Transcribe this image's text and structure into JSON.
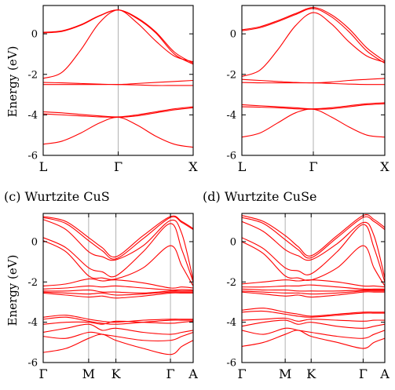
{
  "figure": {
    "panel_titles": [
      "",
      "",
      "(c) Wurtzite CuS",
      "(d) Wurtzite CuSe"
    ],
    "ylabel": "Energy (eV)"
  },
  "colors": {
    "band": "#ff0000",
    "hsym": "#aaaaaa",
    "axes": "#000000"
  },
  "chart_data": [
    {
      "type": "line",
      "title": "",
      "ylabel": "Energy (eV)",
      "ylim": [
        -6,
        1.4
      ],
      "yticks": [
        0,
        -2,
        -4,
        -6
      ],
      "kpoints": [
        "L",
        "Γ",
        "X"
      ],
      "kpos": [
        0,
        1,
        2
      ],
      "internal_lines": [
        1
      ],
      "x": [
        0,
        0.25,
        0.5,
        0.75,
        1,
        1.25,
        1.5,
        1.75,
        2
      ],
      "series": [
        {
          "values": [
            0.08,
            0.15,
            0.45,
            0.9,
            1.18,
            0.8,
            0.1,
            -0.9,
            -1.45
          ]
        },
        {
          "values": [
            0.05,
            0.12,
            0.42,
            0.88,
            1.18,
            0.76,
            0.05,
            -1.0,
            -1.5
          ]
        },
        {
          "values": [
            -2.2,
            -1.9,
            -0.8,
            0.55,
            1.18,
            0.55,
            -0.35,
            -1.1,
            -1.38
          ]
        },
        {
          "values": [
            -2.4,
            -2.42,
            -2.45,
            -2.48,
            -2.5,
            -2.45,
            -2.4,
            -2.35,
            -2.3
          ]
        },
        {
          "values": [
            -2.5,
            -2.5,
            -2.5,
            -2.5,
            -2.5,
            -2.52,
            -2.55,
            -2.55,
            -2.55
          ]
        },
        {
          "values": [
            -3.85,
            -3.9,
            -3.98,
            -4.05,
            -4.1,
            -4.0,
            -3.85,
            -3.7,
            -3.6
          ]
        },
        {
          "values": [
            -3.95,
            -4.0,
            -4.05,
            -4.1,
            -4.12,
            -4.05,
            -3.9,
            -3.75,
            -3.65
          ]
        },
        {
          "values": [
            -5.45,
            -5.3,
            -4.9,
            -4.4,
            -4.12,
            -4.5,
            -5.05,
            -5.45,
            -5.6
          ]
        }
      ]
    },
    {
      "type": "line",
      "title": "",
      "ylabel": "",
      "ylim": [
        -6,
        1.4
      ],
      "yticks": [
        0,
        -2,
        -4,
        -6
      ],
      "kpoints": [
        "L",
        "Γ",
        "X"
      ],
      "kpos": [
        0,
        1,
        2
      ],
      "internal_lines": [
        1
      ],
      "x": [
        0,
        0.25,
        0.5,
        0.75,
        1,
        1.25,
        1.5,
        1.75,
        2
      ],
      "series": [
        {
          "values": [
            0.2,
            0.35,
            0.65,
            1.0,
            1.3,
            0.95,
            0.25,
            -0.7,
            -1.35
          ]
        },
        {
          "values": [
            0.15,
            0.3,
            0.6,
            0.95,
            1.25,
            0.85,
            0.1,
            -0.85,
            -1.45
          ]
        },
        {
          "values": [
            -2.1,
            -1.8,
            -0.8,
            0.4,
            1.05,
            0.5,
            -0.4,
            -1.1,
            -1.4
          ]
        },
        {
          "values": [
            -2.25,
            -2.3,
            -2.35,
            -2.4,
            -2.42,
            -2.38,
            -2.3,
            -2.25,
            -2.2
          ]
        },
        {
          "values": [
            -2.4,
            -2.42,
            -2.42,
            -2.42,
            -2.42,
            -2.45,
            -2.48,
            -2.5,
            -2.5
          ]
        },
        {
          "values": [
            -3.5,
            -3.55,
            -3.6,
            -3.65,
            -3.7,
            -3.65,
            -3.55,
            -3.45,
            -3.4
          ]
        },
        {
          "values": [
            -3.6,
            -3.62,
            -3.65,
            -3.7,
            -3.72,
            -3.7,
            -3.6,
            -3.5,
            -3.45
          ]
        },
        {
          "values": [
            -5.1,
            -4.9,
            -4.4,
            -3.9,
            -3.72,
            -4.1,
            -4.6,
            -5.0,
            -5.1
          ]
        }
      ]
    },
    {
      "type": "line",
      "title": "(c) Wurtzite CuS",
      "ylabel": "Energy (eV)",
      "ylim": [
        -6,
        1.4
      ],
      "yticks": [
        0,
        -2,
        -4,
        -6
      ],
      "kpoints": [
        "Γ",
        "M",
        "K",
        "Γ",
        "A"
      ],
      "kpos": [
        0,
        1,
        1.6,
        2.8,
        3.3
      ],
      "internal_lines": [
        1,
        1.6,
        2.8
      ],
      "x": [
        0,
        0.5,
        1,
        1.3,
        1.6,
        2.2,
        2.8,
        3.05,
        3.3
      ],
      "series": [
        {
          "values": [
            1.25,
            1.0,
            0.2,
            -0.3,
            -0.75,
            0.3,
            1.25,
            1.0,
            0.65
          ]
        },
        {
          "values": [
            1.2,
            0.9,
            0.05,
            -0.45,
            -0.85,
            0.15,
            1.2,
            0.95,
            0.6
          ]
        },
        {
          "values": [
            1.1,
            0.6,
            -0.5,
            -0.75,
            -0.9,
            -0.2,
            1.05,
            0.4,
            -1.9
          ]
        },
        {
          "values": [
            0.2,
            -0.3,
            -1.3,
            -1.5,
            -1.7,
            -0.5,
            0.9,
            -0.4,
            -2.0
          ]
        },
        {
          "values": [
            0.05,
            -0.5,
            -1.7,
            -1.8,
            -1.85,
            -1.3,
            -0.2,
            -1.2,
            -2.2
          ]
        },
        {
          "values": [
            -2.2,
            -2.1,
            -1.85,
            -1.95,
            -1.9,
            -2.05,
            -2.3,
            -2.25,
            -2.3
          ]
        },
        {
          "values": [
            -2.35,
            -2.3,
            -2.2,
            -2.25,
            -2.2,
            -2.3,
            -2.4,
            -2.38,
            -2.4
          ]
        },
        {
          "values": [
            -2.45,
            -2.45,
            -2.4,
            -2.5,
            -2.5,
            -2.55,
            -2.45,
            -2.45,
            -2.45
          ]
        },
        {
          "values": [
            -2.5,
            -2.55,
            -2.6,
            -2.55,
            -2.65,
            -2.6,
            -2.5,
            -2.5,
            -2.5
          ]
        },
        {
          "values": [
            -2.55,
            -2.65,
            -2.75,
            -2.7,
            -2.8,
            -2.7,
            -2.55,
            -2.55,
            -2.55
          ]
        },
        {
          "values": [
            -3.75,
            -3.65,
            -3.85,
            -3.95,
            -4.0,
            -3.9,
            -3.85,
            -3.85,
            -3.85
          ]
        },
        {
          "values": [
            -3.85,
            -3.75,
            -3.95,
            -4.05,
            -4.1,
            -4.0,
            -3.9,
            -3.9,
            -3.9
          ]
        },
        {
          "values": [
            -4.1,
            -4.0,
            -4.0,
            -4.1,
            -3.95,
            -4.0,
            -4.05,
            -4.0,
            -3.95
          ]
        },
        {
          "values": [
            -4.5,
            -4.3,
            -4.1,
            -4.4,
            -4.3,
            -4.5,
            -4.6,
            -4.5,
            -4.4
          ]
        },
        {
          "values": [
            -4.7,
            -4.8,
            -4.5,
            -4.6,
            -4.7,
            -4.9,
            -4.9,
            -4.7,
            -4.5
          ]
        },
        {
          "values": [
            -5.5,
            -5.3,
            -4.8,
            -4.6,
            -4.9,
            -5.3,
            -5.6,
            -5.2,
            -4.9
          ]
        }
      ]
    },
    {
      "type": "line",
      "title": "(d) Wurtzite CuSe",
      "ylabel": "",
      "ylim": [
        -6,
        1.4
      ],
      "yticks": [
        0,
        -2,
        -4,
        -6
      ],
      "kpoints": [
        "Γ",
        "M",
        "K",
        "Γ",
        "A"
      ],
      "kpos": [
        0,
        1,
        1.6,
        2.8,
        3.3
      ],
      "internal_lines": [
        1,
        1.6,
        2.8
      ],
      "x": [
        0,
        0.5,
        1,
        1.3,
        1.6,
        2.2,
        2.8,
        3.05,
        3.3
      ],
      "series": [
        {
          "values": [
            1.3,
            1.0,
            0.3,
            -0.25,
            -0.7,
            0.3,
            1.3,
            1.1,
            0.7
          ]
        },
        {
          "values": [
            1.2,
            0.9,
            0.1,
            -0.4,
            -0.8,
            0.2,
            1.2,
            1.0,
            0.6
          ]
        },
        {
          "values": [
            1.0,
            0.5,
            -0.4,
            -0.7,
            -0.9,
            -0.1,
            0.95,
            0.3,
            -1.8
          ]
        },
        {
          "values": [
            0.2,
            -0.35,
            -1.3,
            -1.45,
            -1.6,
            -0.5,
            0.85,
            -0.3,
            -2.0
          ]
        },
        {
          "values": [
            0.0,
            -0.6,
            -1.7,
            -1.8,
            -1.9,
            -1.3,
            -0.2,
            -1.3,
            -2.2
          ]
        },
        {
          "values": [
            -2.1,
            -2.0,
            -1.9,
            -1.95,
            -1.9,
            -2.0,
            -2.2,
            -2.2,
            -2.25
          ]
        },
        {
          "values": [
            -2.25,
            -2.25,
            -2.2,
            -2.2,
            -2.15,
            -2.25,
            -2.35,
            -2.35,
            -2.35
          ]
        },
        {
          "values": [
            -2.35,
            -2.4,
            -2.4,
            -2.45,
            -2.45,
            -2.45,
            -2.4,
            -2.4,
            -2.4
          ]
        },
        {
          "values": [
            -2.45,
            -2.5,
            -2.55,
            -2.55,
            -2.6,
            -2.55,
            -2.45,
            -2.45,
            -2.45
          ]
        },
        {
          "values": [
            -2.5,
            -2.6,
            -2.7,
            -2.65,
            -2.75,
            -2.65,
            -2.5,
            -2.5,
            -2.5
          ]
        },
        {
          "values": [
            -3.4,
            -3.3,
            -3.5,
            -3.6,
            -3.7,
            -3.6,
            -3.5,
            -3.5,
            -3.5
          ]
        },
        {
          "values": [
            -3.5,
            -3.45,
            -3.6,
            -3.7,
            -3.75,
            -3.65,
            -3.55,
            -3.55,
            -3.55
          ]
        },
        {
          "values": [
            -3.9,
            -3.85,
            -3.8,
            -3.95,
            -3.85,
            -3.9,
            -3.95,
            -3.9,
            -3.9
          ]
        },
        {
          "values": [
            -4.2,
            -4.0,
            -3.9,
            -4.1,
            -4.0,
            -4.2,
            -4.3,
            -4.2,
            -4.1
          ]
        },
        {
          "values": [
            -4.4,
            -4.6,
            -4.3,
            -4.4,
            -4.5,
            -4.7,
            -4.8,
            -4.6,
            -4.4
          ]
        },
        {
          "values": [
            -5.2,
            -5.0,
            -4.6,
            -4.4,
            -4.7,
            -5.0,
            -5.3,
            -5.0,
            -4.8
          ]
        }
      ]
    }
  ]
}
